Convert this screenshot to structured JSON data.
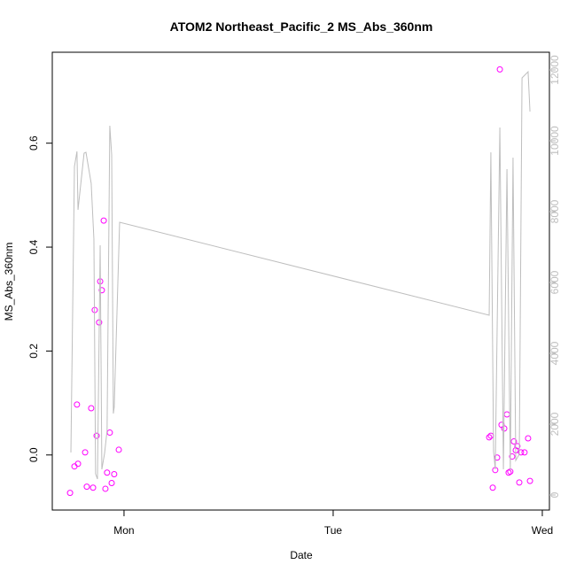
{
  "chart_data": {
    "type": "scatter",
    "title": "ATOM2 Northeast_Pacific_2 MS_Abs_360nm",
    "x_label": "Date",
    "y_label": "MS_Abs_360nm",
    "xlim": [
      -0.343,
      2.034
    ],
    "xticks": [
      {
        "value": 0,
        "label": "Mon"
      },
      {
        "value": 1,
        "label": "Tue"
      },
      {
        "value": 2,
        "label": "Wed"
      }
    ],
    "ylim": [
      -0.106,
      0.775
    ],
    "yticks": [
      {
        "value": 0,
        "label": "0.0"
      },
      0.2,
      0.4,
      0.6
    ],
    "y2lim": [
      -425,
      12500
    ],
    "y2ticks": [
      0,
      2000,
      4000,
      6000,
      8000,
      10000,
      12000
    ],
    "series": [
      {
        "type": "points",
        "color": "#ff00ff",
        "x": [
          -0.258,
          -0.237,
          -0.22,
          -0.225,
          -0.186,
          -0.178,
          -0.157,
          -0.148,
          -0.14,
          -0.131,
          -0.119,
          -0.114,
          -0.106,
          -0.097,
          -0.089,
          -0.081,
          -0.068,
          -0.059,
          -0.047,
          -0.025,
          1.746,
          1.754,
          1.763,
          1.775,
          1.784,
          1.797,
          1.805,
          1.818,
          1.831,
          1.839,
          1.847,
          1.856,
          1.864,
          1.873,
          1.881,
          1.89,
          1.898,
          1.915,
          1.932,
          1.941
        ],
        "values": [
          -0.073,
          -0.022,
          -0.017,
          0.097,
          0.005,
          -0.061,
          0.09,
          -0.063,
          0.279,
          0.037,
          0.255,
          0.334,
          0.317,
          0.451,
          -0.065,
          -0.034,
          0.043,
          -0.054,
          -0.037,
          0.01,
          0.034,
          0.037,
          -0.063,
          -0.029,
          -0.005,
          0.742,
          0.058,
          0.051,
          0.078,
          -0.034,
          -0.032,
          -0.003,
          0.026,
          0.009,
          0.017,
          -0.053,
          0.005,
          0.005,
          0.032,
          -0.05
        ]
      },
      {
        "type": "line",
        "color": "#bebebe",
        "axis": "y2",
        "x": [
          -0.254,
          -0.237,
          -0.225,
          -0.22,
          -0.191,
          -0.182,
          -0.157,
          -0.144,
          -0.136,
          -0.127,
          -0.114,
          -0.106,
          -0.093,
          -0.081,
          -0.068,
          -0.059,
          -0.051,
          -0.047,
          -0.021,
          1.746,
          1.754,
          1.767,
          1.775,
          1.797,
          1.814,
          1.831,
          1.847,
          1.86,
          1.873,
          1.89,
          1.903,
          1.932,
          1.941
        ],
        "values": [
          1200,
          9275,
          9700,
          8050,
          9650,
          9675,
          8800,
          7225,
          600,
          450,
          7050,
          725,
          1175,
          1825,
          10425,
          9600,
          2300,
          2475,
          7700,
          5075,
          9675,
          1225,
          725,
          10375,
          725,
          9200,
          700,
          9525,
          975,
          1150,
          11775,
          11950,
          10825
        ]
      }
    ]
  }
}
